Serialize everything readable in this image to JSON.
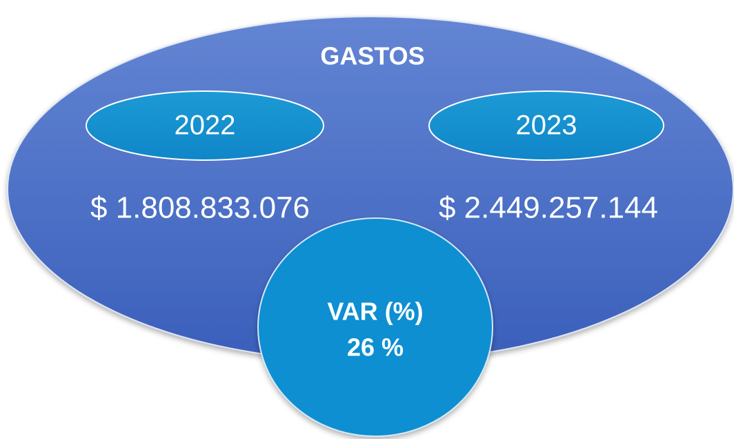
{
  "title": "GASTOS",
  "periods": [
    {
      "year": "2022",
      "amount": "$ 1.808.833.076"
    },
    {
      "year": "2023",
      "amount": "$ 2.449.257.144"
    }
  ],
  "variation": {
    "label": "VAR (%)",
    "value": "26 %"
  }
}
